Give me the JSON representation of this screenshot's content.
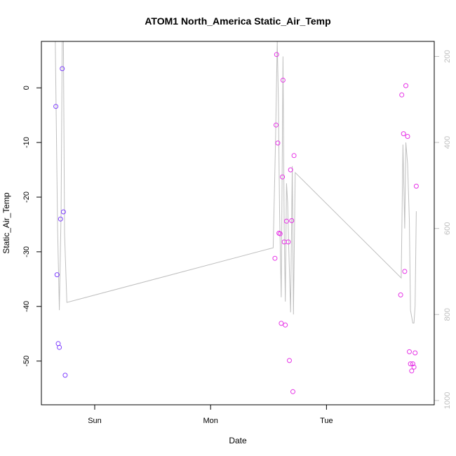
{
  "chart_data": {
    "type": "scatter",
    "title": "ATOM1 North_America Static_Air_Temp",
    "xlabel": "Date",
    "ylabel": "Static_Air_Temp",
    "x_ticks": [
      {
        "label": "Sun",
        "value": 1.0
      },
      {
        "label": "Mon",
        "value": 2.0
      },
      {
        "label": "Tue",
        "value": 3.0
      }
    ],
    "x_range": [
      0.54,
      3.93
    ],
    "y_ticks": [
      0,
      -10,
      -20,
      -30,
      -40,
      -50
    ],
    "y_range": [
      -58,
      8.5
    ],
    "y2_ticks": [
      200,
      400,
      600,
      800,
      1000
    ],
    "y2_range": [
      1010,
      165
    ],
    "grid": false,
    "colors": {
      "axis": "#000000",
      "line": "#bfbfbf",
      "secondary_axis": "#bfbfbf"
    },
    "series": [
      {
        "color": "#7f3fff",
        "points": [
          {
            "x": 0.665,
            "y": -3.4
          },
          {
            "x": 0.675,
            "y": -34.2
          },
          {
            "x": 0.685,
            "y": -46.8
          },
          {
            "x": 0.695,
            "y": -47.5
          },
          {
            "x": 0.705,
            "y": -24.0
          },
          {
            "x": 0.72,
            "y": 3.5
          },
          {
            "x": 0.73,
            "y": -22.7
          },
          {
            "x": 0.745,
            "y": -52.6
          }
        ]
      },
      {
        "color": "#e633e6",
        "points": [
          {
            "x": 2.555,
            "y": -31.2
          },
          {
            "x": 2.565,
            "y": -6.8
          },
          {
            "x": 2.57,
            "y": 6.1
          },
          {
            "x": 2.58,
            "y": -10.1
          },
          {
            "x": 2.59,
            "y": -26.6
          },
          {
            "x": 2.6,
            "y": -26.7
          },
          {
            "x": 2.61,
            "y": -43.1
          },
          {
            "x": 2.62,
            "y": -16.3
          },
          {
            "x": 2.625,
            "y": 1.4
          },
          {
            "x": 2.635,
            "y": -28.2
          },
          {
            "x": 2.645,
            "y": -43.4
          },
          {
            "x": 2.655,
            "y": -24.4
          },
          {
            "x": 2.67,
            "y": -28.2
          },
          {
            "x": 2.68,
            "y": -49.9
          },
          {
            "x": 2.69,
            "y": -15.0
          },
          {
            "x": 2.7,
            "y": -24.3
          },
          {
            "x": 2.71,
            "y": -55.6
          },
          {
            "x": 2.72,
            "y": -12.4
          },
          {
            "x": 3.64,
            "y": -37.9
          },
          {
            "x": 3.65,
            "y": -1.3
          },
          {
            "x": 3.665,
            "y": -8.4
          },
          {
            "x": 3.675,
            "y": -33.6
          },
          {
            "x": 3.685,
            "y": 0.4
          },
          {
            "x": 3.7,
            "y": -8.9
          },
          {
            "x": 3.715,
            "y": -48.3
          },
          {
            "x": 3.725,
            "y": -50.5
          },
          {
            "x": 3.735,
            "y": -51.8
          },
          {
            "x": 3.745,
            "y": -50.5
          },
          {
            "x": 3.755,
            "y": -51.1
          },
          {
            "x": 3.765,
            "y": -48.5
          },
          {
            "x": 3.775,
            "y": -18.0
          }
        ]
      }
    ],
    "line_series": {
      "axis": "secondary",
      "points": [
        {
          "x": 0.66,
          "y": 165
        },
        {
          "x": 0.68,
          "y": 600
        },
        {
          "x": 0.695,
          "y": 790
        },
        {
          "x": 0.71,
          "y": 560
        },
        {
          "x": 0.72,
          "y": 165
        },
        {
          "x": 0.73,
          "y": 165
        },
        {
          "x": 0.74,
          "y": 610
        },
        {
          "x": 0.76,
          "y": 772
        },
        {
          "x": 2.54,
          "y": 645
        },
        {
          "x": 2.56,
          "y": 400
        },
        {
          "x": 2.575,
          "y": 165
        },
        {
          "x": 2.585,
          "y": 300
        },
        {
          "x": 2.595,
          "y": 560
        },
        {
          "x": 2.61,
          "y": 760
        },
        {
          "x": 2.625,
          "y": 200
        },
        {
          "x": 2.635,
          "y": 600
        },
        {
          "x": 2.645,
          "y": 770
        },
        {
          "x": 2.655,
          "y": 495
        },
        {
          "x": 2.665,
          "y": 540
        },
        {
          "x": 2.675,
          "y": 650
        },
        {
          "x": 2.69,
          "y": 795
        },
        {
          "x": 2.705,
          "y": 455
        },
        {
          "x": 2.715,
          "y": 800
        },
        {
          "x": 2.73,
          "y": 470
        },
        {
          "x": 3.645,
          "y": 715
        },
        {
          "x": 3.66,
          "y": 405
        },
        {
          "x": 3.675,
          "y": 600
        },
        {
          "x": 3.685,
          "y": 400
        },
        {
          "x": 3.7,
          "y": 450
        },
        {
          "x": 3.715,
          "y": 580
        },
        {
          "x": 3.725,
          "y": 790
        },
        {
          "x": 3.745,
          "y": 820
        },
        {
          "x": 3.755,
          "y": 820
        },
        {
          "x": 3.765,
          "y": 780
        },
        {
          "x": 3.775,
          "y": 560
        }
      ]
    }
  }
}
